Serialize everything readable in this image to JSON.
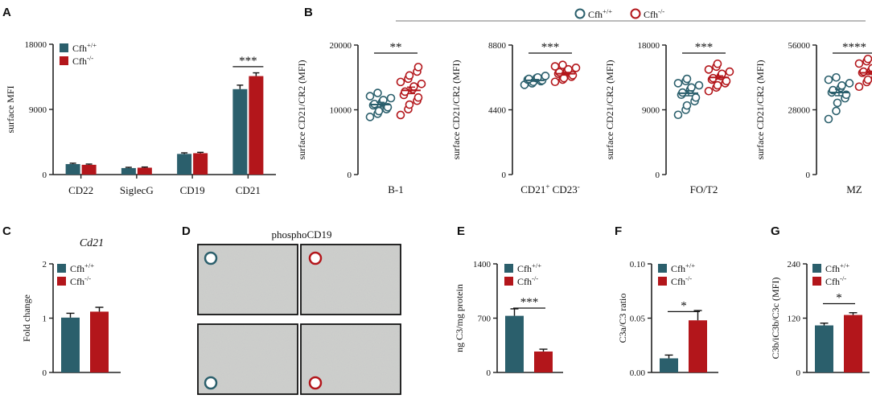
{
  "colors": {
    "wt": "#2b5f6c",
    "ko": "#b3161b",
    "axis": "#222222",
    "micro_bg": "#cfd0cc"
  },
  "legend": {
    "wt": "Cfh+/+",
    "ko": "Cfh-/-"
  },
  "panels": {
    "A": {
      "letter": "A"
    },
    "B": {
      "letter": "B"
    },
    "C": {
      "letter": "C"
    },
    "D": {
      "letter": "D"
    },
    "E": {
      "letter": "E"
    },
    "F": {
      "letter": "F"
    },
    "G": {
      "letter": "G"
    }
  },
  "chart_data": [
    {
      "id": "A",
      "type": "bar",
      "title": "",
      "xlabel": "",
      "ylabel": "surface MFI",
      "ylim": [
        0,
        18000
      ],
      "yticks": [
        "0",
        "9000",
        "18000"
      ],
      "categories": [
        "CD22",
        "SiglecG",
        "CD19",
        "CD21"
      ],
      "series": [
        {
          "name": "Cfh+/+",
          "values": [
            1450,
            900,
            2850,
            11800
          ],
          "errors": [
            120,
            100,
            150,
            550
          ]
        },
        {
          "name": "Cfh-/-",
          "values": [
            1350,
            950,
            2950,
            13600
          ],
          "errors": [
            100,
            90,
            120,
            450
          ]
        }
      ],
      "significance": [
        {
          "category": "CD21",
          "text": "***"
        }
      ],
      "legend_position": "top-left"
    },
    {
      "id": "B1",
      "type": "scatter",
      "category_label": "B-1",
      "ylabel": "surface CD21/CR2 (MFI)",
      "ylim": [
        0,
        20000
      ],
      "yticks": [
        "0",
        "10000",
        "20000"
      ],
      "series": [
        {
          "name": "Cfh+/+",
          "values": [
            8900,
            9400,
            9800,
            10100,
            10400,
            10700,
            10900,
            11200,
            11500,
            11800,
            12100,
            12600
          ],
          "mean": 10800,
          "sem": 350
        },
        {
          "name": "Cfh-/-",
          "values": [
            9200,
            10100,
            10800,
            11400,
            11900,
            12300,
            12800,
            13200,
            13600,
            14000,
            14300,
            14800,
            15300,
            15900,
            16600
          ],
          "mean": 13000,
          "sem": 500
        }
      ],
      "significance": "**"
    },
    {
      "id": "B2",
      "type": "scatter",
      "category_label": "CD21+ CD23-",
      "ylabel": "surface CD21/CR2 (MFI)",
      "ylim": [
        0,
        8800
      ],
      "yticks": [
        "0",
        "4400",
        "8800"
      ],
      "series": [
        {
          "name": "Cfh+/+",
          "values": [
            6100,
            6200,
            6300,
            6350,
            6400,
            6450,
            6500,
            6550,
            6600,
            6700
          ],
          "mean": 6400,
          "sem": 60
        },
        {
          "name": "Cfh-/-",
          "values": [
            6300,
            6450,
            6550,
            6650,
            6750,
            6850,
            6950,
            7050,
            7150,
            7250,
            7350,
            7450
          ],
          "mean": 6850,
          "sem": 90
        }
      ],
      "significance": "***"
    },
    {
      "id": "B3",
      "type": "scatter",
      "category_label": "FO/T2",
      "ylabel": "surface CD21/CR2 (MFI)",
      "ylim": [
        0,
        18000
      ],
      "yticks": [
        "0",
        "9000",
        "18000"
      ],
      "series": [
        {
          "name": "Cfh+/+",
          "values": [
            8300,
            9000,
            9600,
            10200,
            10700,
            11100,
            11400,
            11800,
            12100,
            12400,
            12700,
            13000,
            13300
          ],
          "mean": 11300,
          "sem": 350
        },
        {
          "name": "Cfh-/-",
          "values": [
            11600,
            12100,
            12400,
            12700,
            13000,
            13200,
            13400,
            13700,
            14000,
            14300,
            14600,
            15000,
            15400
          ],
          "mean": 13500,
          "sem": 220
        }
      ],
      "significance": "***"
    },
    {
      "id": "B4",
      "type": "scatter",
      "category_label": "MZ",
      "ylabel": "surface CD21/CR2 (MFI)",
      "ylim": [
        0,
        56000
      ],
      "yticks": [
        "0",
        "28000",
        "56000"
      ],
      "series": [
        {
          "name": "Cfh+/+",
          "values": [
            24000,
            27500,
            31000,
            33000,
            34500,
            35500,
            36500,
            37500,
            38500,
            39500,
            41000,
            42000
          ],
          "mean": 35500,
          "sem": 1400
        },
        {
          "name": "Cfh-/-",
          "values": [
            38000,
            40000,
            41000,
            42000,
            43000,
            44000,
            44500,
            45000,
            46000,
            47000,
            48000,
            49000,
            50000
          ],
          "mean": 44000,
          "sem": 700
        }
      ],
      "significance": "****"
    },
    {
      "id": "C",
      "type": "bar",
      "title": "Cd21",
      "ylabel": "Fold change",
      "ylim": [
        0,
        2
      ],
      "yticks": [
        "0",
        "1",
        "2"
      ],
      "series": [
        {
          "name": "Cfh+/+",
          "value": 1.01,
          "error": 0.08
        },
        {
          "name": "Cfh-/-",
          "value": 1.12,
          "error": 0.08
        }
      ],
      "legend_position": "top-left"
    },
    {
      "id": "E",
      "type": "bar",
      "ylabel": "ng C3/mg protein",
      "ylim": [
        0,
        1400
      ],
      "yticks": [
        "0",
        "700",
        "1400"
      ],
      "series": [
        {
          "name": "Cfh+/+",
          "value": 730,
          "error": 90
        },
        {
          "name": "Cfh-/-",
          "value": 270,
          "error": 30
        }
      ],
      "significance": "***",
      "legend_position": "top-right"
    },
    {
      "id": "F",
      "type": "bar",
      "ylabel": "C3a/C3 ratio",
      "ylim": [
        0,
        0.1
      ],
      "yticks": [
        "0.00",
        "0.05",
        "0.10"
      ],
      "series": [
        {
          "name": "Cfh+/+",
          "value": 0.013,
          "error": 0.003
        },
        {
          "name": "Cfh-/-",
          "value": 0.048,
          "error": 0.009
        }
      ],
      "significance": "*",
      "legend_position": "top-right"
    },
    {
      "id": "G",
      "type": "bar",
      "ylabel": "C3b/iC3b/C3c (MFI)",
      "ylim": [
        0,
        240
      ],
      "yticks": [
        "0",
        "120",
        "240"
      ],
      "series": [
        {
          "name": "Cfh+/+",
          "value": 104,
          "error": 5
        },
        {
          "name": "Cfh-/-",
          "value": 127,
          "error": 5
        }
      ],
      "significance": "*",
      "legend_position": "top-right"
    }
  ],
  "micrographs": {
    "title": "phosphoCD19",
    "tiles": [
      {
        "genotype": "Cfh+/+"
      },
      {
        "genotype": "Cfh-/-"
      },
      {
        "genotype": "Cfh+/+"
      },
      {
        "genotype": "Cfh-/-"
      }
    ]
  }
}
